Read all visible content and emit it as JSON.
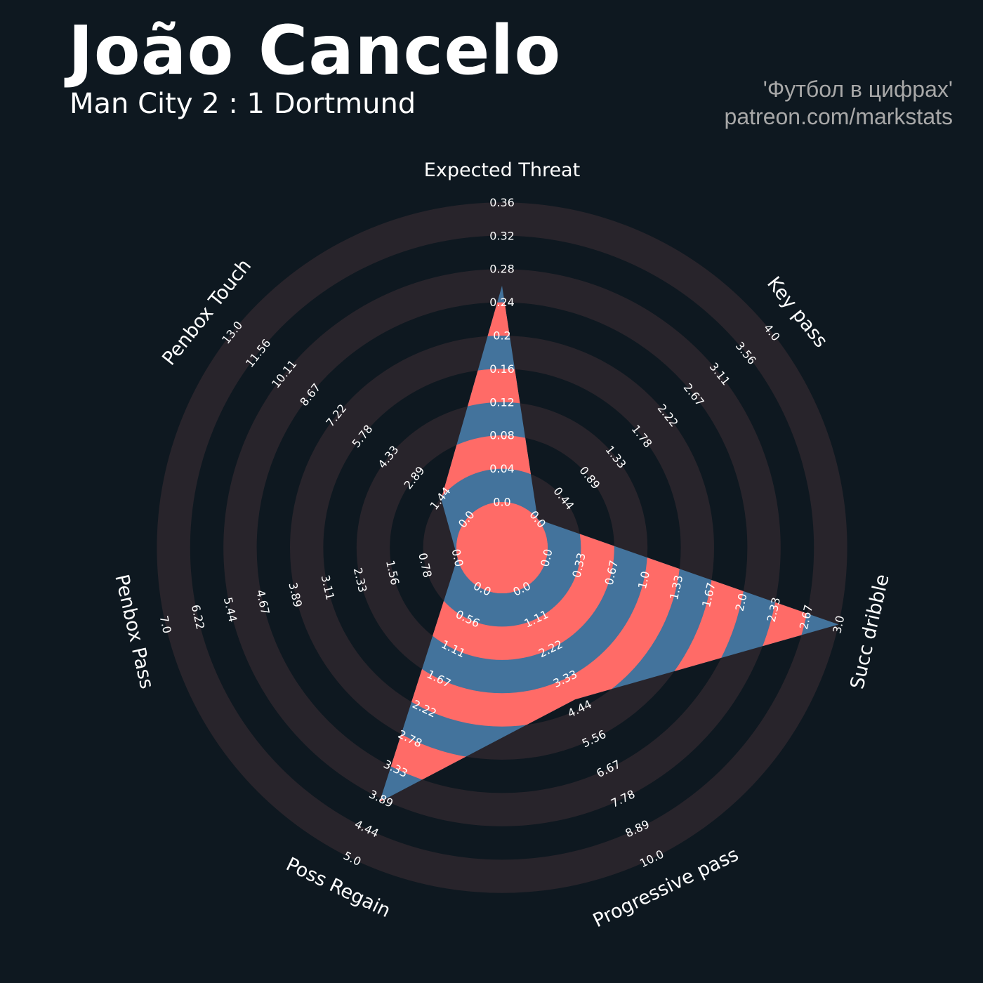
{
  "header": {
    "player": "João Cancelo",
    "match": "Man City 2 : 1 Dortmund",
    "credit_line1": "'Футбол в цифрах'",
    "credit_line2": "patreon.com/markstats"
  },
  "colors": {
    "background": "#0e1820",
    "ring_band": "#28242b",
    "fill_red": "#ff6b67",
    "fill_blue": "#43739c",
    "text": "#ffffff",
    "credit": "#a8a8a8"
  },
  "chart_data": {
    "type": "radar",
    "params": [
      "Expected Threat",
      "Key pass",
      "Succ dribble",
      "Progressive pass",
      "Poss Regain",
      "Penbox Pass",
      "Penbox Touch"
    ],
    "values": [
      0.26,
      0.0,
      3.0,
      4.1,
      3.95,
      0.0,
      1.4
    ],
    "ranges": [
      [
        0,
        0.36
      ],
      [
        0,
        4.0
      ],
      [
        0,
        3.0
      ],
      [
        0,
        10.0
      ],
      [
        0,
        5.0
      ],
      [
        0,
        7.0
      ],
      [
        0,
        13.0
      ]
    ],
    "tick_labels": [
      [
        "0.0",
        "0.04",
        "0.08",
        "0.12",
        "0.16",
        "0.2",
        "0.24",
        "0.28",
        "0.32",
        "0.36"
      ],
      [
        "0.0",
        "0.44",
        "0.89",
        "1.33",
        "1.78",
        "2.22",
        "2.67",
        "3.11",
        "3.56",
        "4.0"
      ],
      [
        "0.0",
        "0.33",
        "0.67",
        "1.0",
        "1.33",
        "1.67",
        "2.0",
        "2.33",
        "2.67",
        "3.0"
      ],
      [
        "0.0",
        "1.11",
        "2.22",
        "3.33",
        "4.44",
        "5.56",
        "6.67",
        "7.78",
        "8.89",
        "10.0"
      ],
      [
        "0.0",
        "0.56",
        "1.11",
        "1.67",
        "2.22",
        "2.78",
        "3.33",
        "3.89",
        "4.44",
        "5.0"
      ],
      [
        "0.0",
        "0.78",
        "1.56",
        "2.33",
        "3.11",
        "3.89",
        "4.67",
        "5.44",
        "6.22",
        "7.0"
      ],
      [
        "0.0",
        "1.44",
        "2.89",
        "4.33",
        "5.78",
        "7.22",
        "8.67",
        "10.11",
        "11.56",
        "13.0"
      ]
    ]
  }
}
